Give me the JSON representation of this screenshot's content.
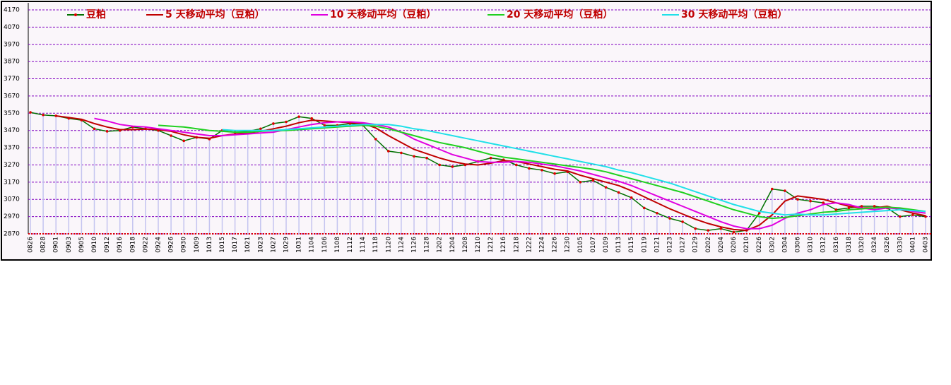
{
  "chart_data": {
    "type": "line",
    "categories": [
      "0826",
      "0828",
      "0901",
      "0903",
      "0905",
      "0910",
      "0912",
      "0916",
      "0918",
      "0922",
      "0924",
      "0926",
      "0930",
      "1009",
      "1013",
      "1015",
      "1017",
      "1021",
      "1023",
      "1027",
      "1029",
      "1031",
      "1104",
      "1106",
      "1108",
      "1112",
      "1114",
      "1118",
      "1120",
      "1124",
      "1126",
      "1128",
      "1202",
      "1204",
      "1208",
      "1210",
      "1212",
      "1216",
      "1218",
      "1222",
      "1224",
      "1226",
      "1230",
      "0105",
      "0107",
      "0109",
      "0113",
      "0115",
      "0119",
      "0121",
      "0123",
      "0127",
      "0129",
      "0202",
      "0204",
      "0206",
      "0210",
      "0226",
      "0302",
      "0304",
      "0306",
      "0310",
      "0312",
      "0316",
      "0318",
      "0320",
      "0324",
      "0326",
      "0330",
      "0401",
      "0403"
    ],
    "series": [
      {
        "name": "豆粕",
        "color": "#007000",
        "values": [
          3575,
          3560,
          3555,
          3540,
          3530,
          3480,
          3465,
          3470,
          3490,
          3480,
          3470,
          3440,
          3410,
          3430,
          3420,
          3470,
          3460,
          3465,
          3480,
          3510,
          3520,
          3550,
          3540,
          3500,
          3500,
          3510,
          3500,
          3420,
          3350,
          3340,
          3320,
          3310,
          3270,
          3260,
          3270,
          3290,
          3310,
          3300,
          3270,
          3250,
          3240,
          3220,
          3230,
          3170,
          3180,
          3140,
          3110,
          3080,
          3020,
          2990,
          2960,
          2940,
          2900,
          2890,
          2900,
          2880,
          2890,
          2990,
          3130,
          3120,
          3070,
          3060,
          3050,
          3010,
          3020,
          3030,
          3030,
          3020,
          2970,
          2980,
          2970
        ]
      },
      {
        "name": "5 天移动平均（豆粕）",
        "color": "#c00000",
        "values": [
          null,
          null,
          3555,
          3545,
          3535,
          3510,
          3490,
          3475,
          3475,
          3478,
          3475,
          3465,
          3445,
          3430,
          3425,
          3440,
          3450,
          3455,
          3465,
          3480,
          3495,
          3515,
          3530,
          3525,
          3520,
          3515,
          3510,
          3485,
          3440,
          3400,
          3360,
          3335,
          3310,
          3290,
          3275,
          3270,
          3280,
          3295,
          3290,
          3275,
          3260,
          3245,
          3235,
          3210,
          3190,
          3170,
          3150,
          3120,
          3085,
          3050,
          3015,
          2985,
          2955,
          2930,
          2910,
          2895,
          2890,
          2920,
          2980,
          3060,
          3090,
          3080,
          3070,
          3050,
          3030,
          3020,
          3020,
          3030,
          3010,
          2990,
          2975
        ]
      },
      {
        "name": "10 天移动平均（豆粕）",
        "color": "#e000e0",
        "values": [
          null,
          null,
          null,
          null,
          null,
          3540,
          3525,
          3505,
          3495,
          3490,
          3480,
          3470,
          3460,
          3450,
          3440,
          3440,
          3445,
          3450,
          3455,
          3460,
          3475,
          3490,
          3505,
          3515,
          3520,
          3520,
          3515,
          3505,
          3490,
          3460,
          3420,
          3390,
          3360,
          3330,
          3310,
          3290,
          3285,
          3285,
          3290,
          3285,
          3275,
          3265,
          3250,
          3235,
          3215,
          3195,
          3175,
          3150,
          3120,
          3090,
          3060,
          3030,
          3000,
          2970,
          2940,
          2915,
          2900,
          2900,
          2920,
          2960,
          2990,
          3010,
          3040,
          3050,
          3040,
          3020,
          3010,
          3020,
          3015,
          3000,
          2990
        ]
      },
      {
        "name": "20 天移动平均（豆粕）",
        "color": "#20d020",
        "values": [
          null,
          null,
          null,
          null,
          null,
          null,
          null,
          null,
          null,
          null,
          3500,
          3495,
          3490,
          3480,
          3470,
          3465,
          3460,
          3460,
          3465,
          3470,
          3470,
          3475,
          3480,
          3485,
          3490,
          3495,
          3500,
          3495,
          3480,
          3460,
          3440,
          3420,
          3400,
          3385,
          3370,
          3350,
          3330,
          3315,
          3305,
          3295,
          3285,
          3275,
          3265,
          3255,
          3245,
          3230,
          3210,
          3190,
          3170,
          3150,
          3130,
          3110,
          3085,
          3060,
          3035,
          3010,
          2990,
          2970,
          2960,
          2965,
          2975,
          2985,
          2995,
          3000,
          3010,
          3015,
          3020,
          3025,
          3020,
          3010,
          3000
        ]
      },
      {
        "name": "30 天移动平均（豆粕）",
        "color": "#20e0e8",
        "values": [
          null,
          null,
          null,
          null,
          null,
          null,
          null,
          null,
          null,
          null,
          null,
          null,
          null,
          null,
          null,
          3475,
          3470,
          3470,
          3470,
          3470,
          3475,
          3480,
          3485,
          3490,
          3495,
          3500,
          3505,
          3505,
          3505,
          3495,
          3480,
          3470,
          3455,
          3440,
          3425,
          3410,
          3395,
          3380,
          3365,
          3350,
          3335,
          3320,
          3305,
          3290,
          3275,
          3260,
          3240,
          3225,
          3205,
          3185,
          3165,
          3140,
          3115,
          3090,
          3065,
          3040,
          3020,
          3000,
          2990,
          2980,
          2985,
          2980,
          2980,
          2985,
          2990,
          2995,
          3000,
          3005,
          3010,
          3005,
          3000
        ]
      }
    ],
    "ylim": [
      2870,
      4170
    ],
    "yticks": [
      2870,
      2970,
      3070,
      3170,
      3270,
      3370,
      3470,
      3570,
      3670,
      3770,
      3870,
      3970,
      4070,
      4170
    ],
    "grid": true
  }
}
